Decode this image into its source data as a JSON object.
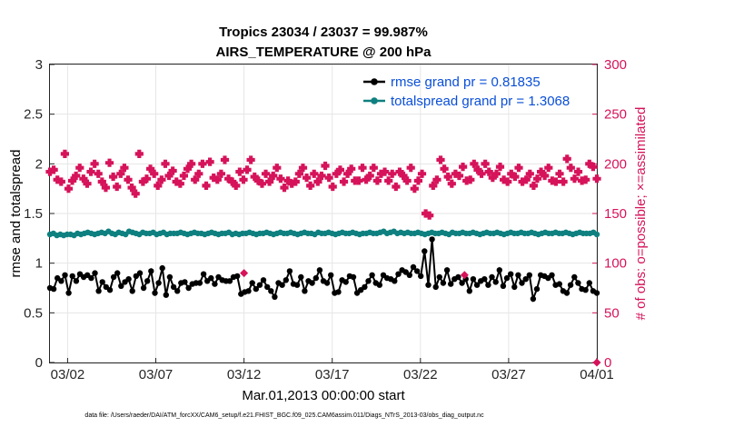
{
  "chart_data": {
    "type": "line",
    "title": "Tropics 23034 / 23037 = 99.987%",
    "subtitle": "AIRS_TEMPERATURE @ 200 hPa",
    "xlabel": "Mar.01,2013 00:00:00 start",
    "ylabel": "rmse and totalspread",
    "ylabel_right": "# of obs: o=possible; ×=assimilated",
    "xlim": [
      0,
      31
    ],
    "ylim": [
      0,
      3
    ],
    "ylim_right": [
      0,
      300
    ],
    "x_ticks": [
      {
        "x": 1,
        "label": "03/02"
      },
      {
        "x": 6,
        "label": "03/07"
      },
      {
        "x": 11,
        "label": "03/12"
      },
      {
        "x": 16,
        "label": "03/17"
      },
      {
        "x": 21,
        "label": "03/22"
      },
      {
        "x": 26,
        "label": "03/27"
      },
      {
        "x": 31,
        "label": "04/01"
      }
    ],
    "y_ticks": [
      "0",
      "0.5",
      "1",
      "1.5",
      "2",
      "2.5",
      "3"
    ],
    "y_ticks_right": [
      "0",
      "50",
      "100",
      "150",
      "200",
      "250",
      "300"
    ],
    "grid": true,
    "legend": {
      "position": "top-right",
      "entries": [
        "rmse grand pr = 0.81835",
        "totalspread grand pr = 1.3068"
      ]
    },
    "footnote": "data file: /Users/raeder/DAI/ATM_forcXX/CAM6_setup/f.e21.FHIST_BGC.f09_025.CAM6assim.011/Diags_NTrS_2013-03/obs_diag_output.nc",
    "colors": {
      "rmse": "#000000",
      "spread": "#0f8080",
      "obs": "#d6135a"
    },
    "series": [
      {
        "name": "rmse",
        "values": [
          0.75,
          0.74,
          0.85,
          0.82,
          0.88,
          0.7,
          0.87,
          0.82,
          0.89,
          0.86,
          0.88,
          0.85,
          0.9,
          0.72,
          0.81,
          0.76,
          0.73,
          0.86,
          0.9,
          0.77,
          0.81,
          0.84,
          0.72,
          0.87,
          0.9,
          0.75,
          0.82,
          0.92,
          0.7,
          0.8,
          0.95,
          0.68,
          0.86,
          0.76,
          0.72,
          0.8,
          0.81,
          0.75,
          0.79,
          0.8,
          0.8,
          0.89,
          0.82,
          0.85,
          0.79,
          0.86,
          0.83,
          0.82,
          0.82,
          0.86,
          0.87,
          0.69,
          0.71,
          0.72,
          0.8,
          0.74,
          0.78,
          0.83,
          0.76,
          0.72,
          0.66,
          0.8,
          0.78,
          0.83,
          0.92,
          0.79,
          0.78,
          0.86,
          0.72,
          0.82,
          0.8,
          0.85,
          0.93,
          0.82,
          0.8,
          0.88,
          0.7,
          0.71,
          0.83,
          0.81,
          0.87,
          0.86,
          0.7,
          0.73,
          0.76,
          0.82,
          0.88,
          0.8,
          0.78,
          0.88,
          0.85,
          0.84,
          0.82,
          0.89,
          0.93,
          0.91,
          0.88,
          0.96,
          0.92,
          0.87,
          1.12,
          0.78,
          1.24,
          0.76,
          0.86,
          0.8,
          0.93,
          0.79,
          0.84,
          0.86,
          0.8,
          0.84,
          0.72,
          0.84,
          0.78,
          0.82,
          0.84,
          0.78,
          0.86,
          0.81,
          0.93,
          0.77,
          0.85,
          0.89,
          0.76,
          0.88,
          0.8,
          0.84,
          0.88,
          0.64,
          0.74,
          0.88,
          0.87,
          0.85,
          0.88,
          0.78,
          0.79,
          0.72,
          0.7,
          0.78,
          0.86,
          0.8,
          0.74,
          0.73,
          0.8,
          0.72,
          0.7
        ]
      },
      {
        "name": "totalspread",
        "values": [
          1.29,
          1.3,
          1.28,
          1.29,
          1.28,
          1.29,
          1.29,
          1.28,
          1.3,
          1.29,
          1.3,
          1.31,
          1.3,
          1.29,
          1.3,
          1.31,
          1.3,
          1.32,
          1.3,
          1.29,
          1.31,
          1.3,
          1.29,
          1.32,
          1.31,
          1.3,
          1.29,
          1.31,
          1.3,
          1.3,
          1.31,
          1.29,
          1.3,
          1.31,
          1.29,
          1.3,
          1.3,
          1.3,
          1.31,
          1.3,
          1.29,
          1.3,
          1.31,
          1.3,
          1.3,
          1.29,
          1.3,
          1.31,
          1.3,
          1.29,
          1.3,
          1.3,
          1.31,
          1.29,
          1.3,
          1.29,
          1.3,
          1.3,
          1.31,
          1.3,
          1.29,
          1.3,
          1.3,
          1.31,
          1.3,
          1.29,
          1.3,
          1.31,
          1.3,
          1.3,
          1.31,
          1.3,
          1.29,
          1.3,
          1.31,
          1.3,
          1.3,
          1.29,
          1.31,
          1.3,
          1.3,
          1.31,
          1.3,
          1.29,
          1.3,
          1.31,
          1.3,
          1.3,
          1.31,
          1.3,
          1.29,
          1.3,
          1.3,
          1.31,
          1.3,
          1.3,
          1.31,
          1.32,
          1.3,
          1.31,
          1.32,
          1.3,
          1.31,
          1.3,
          1.31,
          1.3,
          1.3,
          1.31,
          1.3,
          1.29,
          1.3,
          1.31,
          1.3,
          1.3,
          1.31,
          1.3,
          1.29,
          1.31,
          1.3,
          1.3,
          1.31,
          1.3,
          1.3,
          1.31,
          1.3,
          1.29,
          1.3,
          1.31,
          1.3,
          1.3,
          1.31,
          1.3,
          1.29,
          1.3,
          1.31,
          1.3,
          1.3,
          1.31,
          1.3,
          1.3,
          1.31,
          1.3,
          1.29,
          1.3,
          1.31,
          1.3,
          1.3,
          1.31,
          1.3,
          1.3,
          1.31,
          1.3,
          1.29,
          1.3,
          1.31,
          1.3,
          1.3,
          1.3,
          1.31,
          1.29
        ]
      },
      {
        "name": "# of obs possible",
        "axis": "right",
        "values": [
          192,
          194,
          184,
          182,
          210,
          175,
          183,
          188,
          196,
          185,
          180,
          192,
          200,
          190,
          182,
          176,
          201,
          187,
          177,
          190,
          196,
          184,
          176,
          170,
          210,
          182,
          185,
          195,
          190,
          178,
          184,
          200,
          188,
          193,
          182,
          180,
          188,
          195,
          200,
          184,
          190,
          200,
          178,
          202,
          186,
          184,
          190,
          204,
          185,
          182,
          178,
          192,
          184,
          194,
          204,
          187,
          183,
          180,
          190,
          182,
          188,
          196,
          185,
          176,
          183,
          180,
          182,
          190,
          196,
          186,
          178,
          190,
          182,
          188,
          198,
          186,
          177,
          190,
          194,
          182,
          190,
          195,
          183,
          183,
          196,
          184,
          188,
          196,
          183,
          190,
          192,
          183,
          190,
          177,
          192,
          188,
          183,
          196,
          175,
          183,
          190,
          150,
          148,
          178,
          184,
          204,
          195,
          187,
          180,
          190,
          188,
          197,
          183,
          184,
          200,
          194,
          190,
          200,
          192,
          186,
          190,
          197,
          184,
          182,
          190,
          187,
          196,
          182,
          184,
          190,
          178,
          185,
          192,
          188,
          196,
          183,
          182,
          190,
          182,
          205,
          196,
          185,
          192,
          183,
          184,
          200,
          197,
          185
        ]
      },
      {
        "name": "# of obs assimilated",
        "axis": "right",
        "values": [
          [
            11,
            90
          ],
          [
            23.5,
            88
          ],
          [
            31,
            0
          ]
        ]
      }
    ]
  }
}
